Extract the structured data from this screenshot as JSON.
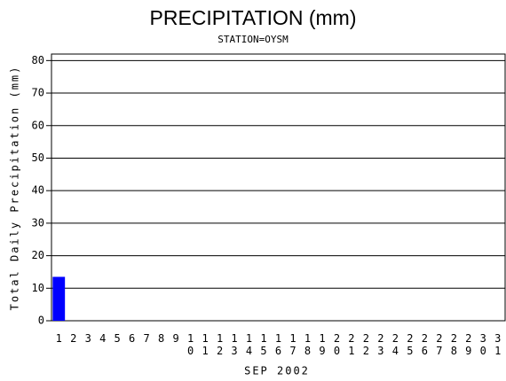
{
  "chart_data": {
    "type": "bar",
    "title": "PRECIPITATION (mm)",
    "subtitle": "STATION=OYSM",
    "x_label": "SEP 2002",
    "y_label": "Total Daily Precipitation (mm)",
    "categories": [
      "1",
      "2",
      "3",
      "4",
      "5",
      "6",
      "7",
      "8",
      "9",
      "10",
      "11",
      "12",
      "13",
      "14",
      "15",
      "16",
      "17",
      "18",
      "19",
      "20",
      "21",
      "22",
      "23",
      "24",
      "25",
      "26",
      "27",
      "28",
      "29",
      "30",
      "31"
    ],
    "values": [
      13.5,
      0,
      0,
      0,
      0,
      0,
      0,
      0,
      0,
      0,
      0,
      0,
      0,
      0,
      0,
      0,
      0,
      0,
      0,
      0,
      0,
      0,
      0,
      0,
      0,
      0,
      0,
      0,
      0,
      0,
      0
    ],
    "color": "#0000ff",
    "ylim": [
      0,
      82
    ],
    "yticks": [
      0,
      10,
      20,
      30,
      40,
      50,
      60,
      70,
      80
    ],
    "grid": true
  }
}
